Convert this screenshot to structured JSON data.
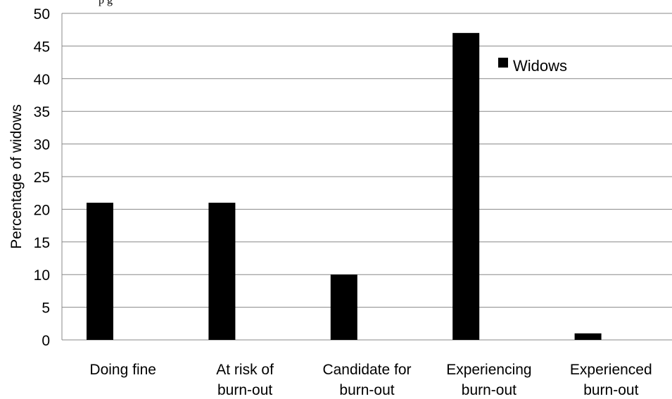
{
  "title_fragment": "p              g",
  "chart_data": {
    "type": "bar",
    "categories": [
      [
        "Doing fine"
      ],
      [
        "At risk of",
        "burn-out"
      ],
      [
        "Candidate for",
        "burn-out"
      ],
      [
        "Experiencing",
        "burn-out"
      ],
      [
        "Experienced",
        "burn-out"
      ]
    ],
    "series": [
      {
        "name": "Widows",
        "values": [
          21,
          21,
          10,
          47,
          1
        ],
        "color": "#000000"
      }
    ],
    "xlabel": "",
    "ylabel": "Percentage  of  widows",
    "ylim": [
      0,
      50
    ],
    "yticks": [
      0,
      5,
      10,
      15,
      20,
      25,
      30,
      35,
      40,
      45,
      50
    ],
    "grid": true,
    "grid_color": "#888888",
    "legend_position": "top-right"
  }
}
